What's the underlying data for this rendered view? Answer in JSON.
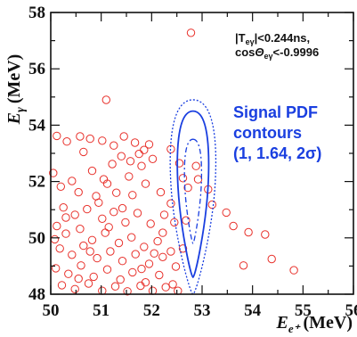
{
  "chart_data": {
    "type": "scatter",
    "xlabel": {
      "main": "E",
      "sub": "e⁺",
      "unit": "(MeV)"
    },
    "ylabel": {
      "main": "E",
      "sub": "γ",
      "unit": "(MeV)"
    },
    "xlim": [
      50,
      56
    ],
    "ylim": [
      48,
      58
    ],
    "x_ticks": [
      "50",
      "51",
      "52",
      "53",
      "54",
      "55",
      "56"
    ],
    "y_ticks": [
      "48",
      "50",
      "52",
      "54",
      "56",
      "58"
    ],
    "cuts": {
      "line1": "|T",
      "line1_sub": "eγ",
      "line1_rest": "|<0.244ns,",
      "line2": "cos",
      "line2_theta": "Θ",
      "line2_sub": "eγ",
      "line2_rest": "<-0.9996"
    },
    "legend": {
      "line1": "Signal PDF",
      "line2": "contours",
      "line3": "(1, 1.64, 2σ)"
    },
    "colors": {
      "points": "#e8302a",
      "contours": "#1a3fe0"
    },
    "marker": "open-circle",
    "contours": [
      {
        "level": "1σ",
        "style": "solid",
        "center": [
          52.82,
          51.2
        ],
        "half_width": 0.33,
        "top": 54.5,
        "bottom": 48.6
      },
      {
        "level": "1.64σ",
        "style": "dashdot",
        "center": [
          52.82,
          51.9
        ],
        "half_width": 0.18,
        "top": 53.5,
        "bottom": 49.8
      },
      {
        "level": "2σ",
        "style": "dotted",
        "center": [
          52.82,
          51.5
        ],
        "half_width": 0.48,
        "top": 54.9,
        "bottom": 48.0
      }
    ],
    "series": [
      {
        "points": [
          [
            50.12,
            53.62
          ],
          [
            50.32,
            53.42
          ],
          [
            50.58,
            53.6
          ],
          [
            50.78,
            53.52
          ],
          [
            51.02,
            53.45
          ],
          [
            51.25,
            53.28
          ],
          [
            51.45,
            53.6
          ],
          [
            51.67,
            53.38
          ],
          [
            51.85,
            53.12
          ],
          [
            51.4,
            52.9
          ],
          [
            51.58,
            52.72
          ],
          [
            51.8,
            52.55
          ],
          [
            52.02,
            52.8
          ],
          [
            51.22,
            52.62
          ],
          [
            52.38,
            53.15
          ],
          [
            52.55,
            52.65
          ],
          [
            52.62,
            52.12
          ],
          [
            52.72,
            51.78
          ],
          [
            52.88,
            52.55
          ],
          [
            53.12,
            51.72
          ],
          [
            53.2,
            51.18
          ],
          [
            53.48,
            50.9
          ],
          [
            53.62,
            50.42
          ],
          [
            53.92,
            50.2
          ],
          [
            54.25,
            50.12
          ],
          [
            54.38,
            49.25
          ],
          [
            53.82,
            49.02
          ],
          [
            54.82,
            48.85
          ],
          [
            52.78,
            57.28
          ],
          [
            51.1,
            54.9
          ],
          [
            50.05,
            52.3
          ],
          [
            50.2,
            51.82
          ],
          [
            50.42,
            52.02
          ],
          [
            50.55,
            51.62
          ],
          [
            50.82,
            52.38
          ],
          [
            50.9,
            51.48
          ],
          [
            51.12,
            51.92
          ],
          [
            51.3,
            51.6
          ],
          [
            51.55,
            52.18
          ],
          [
            51.62,
            51.52
          ],
          [
            51.88,
            51.92
          ],
          [
            52.18,
            51.62
          ],
          [
            52.38,
            51.22
          ],
          [
            52.25,
            50.82
          ],
          [
            50.25,
            51.08
          ],
          [
            50.48,
            50.82
          ],
          [
            50.72,
            51.02
          ],
          [
            51.02,
            50.68
          ],
          [
            51.25,
            50.92
          ],
          [
            51.48,
            50.55
          ],
          [
            51.72,
            50.88
          ],
          [
            51.98,
            50.5
          ],
          [
            52.22,
            50.18
          ],
          [
            52.45,
            50.55
          ],
          [
            52.62,
            49.62
          ],
          [
            50.12,
            50.42
          ],
          [
            50.3,
            50.15
          ],
          [
            50.58,
            50.32
          ],
          [
            50.82,
            49.92
          ],
          [
            51.08,
            50.18
          ],
          [
            51.35,
            49.82
          ],
          [
            51.6,
            50.02
          ],
          [
            51.85,
            49.68
          ],
          [
            52.12,
            49.88
          ],
          [
            52.38,
            49.52
          ],
          [
            50.18,
            49.62
          ],
          [
            50.42,
            49.4
          ],
          [
            50.65,
            49.72
          ],
          [
            50.92,
            49.28
          ],
          [
            51.18,
            49.52
          ],
          [
            51.42,
            49.18
          ],
          [
            51.68,
            49.42
          ],
          [
            51.95,
            49.08
          ],
          [
            52.22,
            49.32
          ],
          [
            52.48,
            48.98
          ],
          [
            50.1,
            48.92
          ],
          [
            50.35,
            48.72
          ],
          [
            50.6,
            49.02
          ],
          [
            50.85,
            48.62
          ],
          [
            51.12,
            48.88
          ],
          [
            51.38,
            48.52
          ],
          [
            51.62,
            48.78
          ],
          [
            51.88,
            48.42
          ],
          [
            52.15,
            48.68
          ],
          [
            52.42,
            48.35
          ],
          [
            50.22,
            48.32
          ],
          [
            50.48,
            48.18
          ],
          [
            50.75,
            48.38
          ],
          [
            51.02,
            48.12
          ],
          [
            51.28,
            48.28
          ],
          [
            51.52,
            48.1
          ],
          [
            51.78,
            48.3
          ],
          [
            52.02,
            48.12
          ],
          [
            52.28,
            48.25
          ],
          [
            52.52,
            48.12
          ],
          [
            50.3,
            50.72
          ],
          [
            50.95,
            51.25
          ],
          [
            51.05,
            52.08
          ],
          [
            51.75,
            52.98
          ],
          [
            51.95,
            53.32
          ],
          [
            50.65,
            53.05
          ],
          [
            52.68,
            50.62
          ],
          [
            52.92,
            52.08
          ],
          [
            50.08,
            49.95
          ],
          [
            51.42,
            51.05
          ],
          [
            51.15,
            50.38
          ],
          [
            50.78,
            49.52
          ],
          [
            51.8,
            48.9
          ],
          [
            52.05,
            49.45
          ],
          [
            50.55,
            48.55
          ]
        ]
      }
    ]
  }
}
